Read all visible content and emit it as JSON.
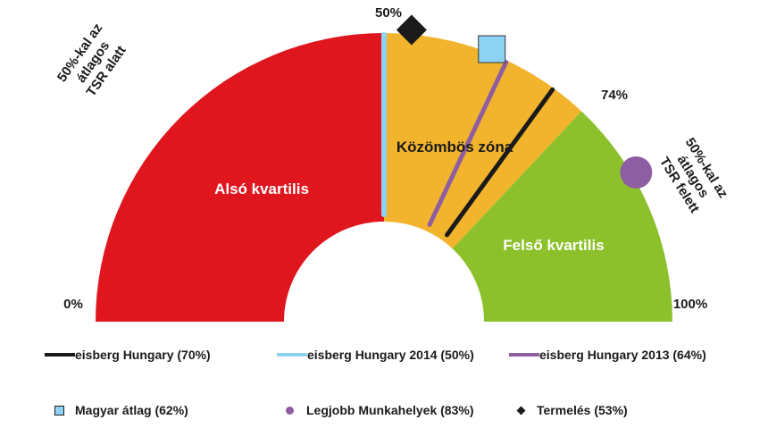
{
  "chart_data": {
    "type": "gauge",
    "scale_start_label": "0%",
    "scale_end_label": "100%",
    "zones": [
      {
        "name": "Alsó kvartilis",
        "from": 0,
        "to": 50,
        "color": "#e0161f"
      },
      {
        "name": "Közömbös zóna",
        "from": 50,
        "to": 74,
        "color": "#f2b42c"
      },
      {
        "name": "Felső kvartilis",
        "from": 74,
        "to": 100,
        "color": "#8dc12b"
      }
    ],
    "zone_boundary_labels": [
      "50%",
      "74%"
    ],
    "side_notes": {
      "left": [
        "50%-kal az",
        "átlagos",
        "TSR alatt"
      ],
      "right": [
        "50%-kal az",
        "átlagos",
        "TSR felett"
      ]
    },
    "needles": [
      {
        "name": "eisberg Hungary (70%)",
        "value": 70,
        "color": "#1a1a1a"
      },
      {
        "name": "eisberg Hungary 2014 (50%)",
        "value": 50,
        "color": "#8fd3f4"
      },
      {
        "name": "eisberg Hungary 2013 (64%)",
        "value": 64,
        "color": "#8e5ea2"
      }
    ],
    "markers": [
      {
        "name": "Magyar átlag (62%)",
        "value": 62,
        "shape": "square",
        "color": "#8fd3f4"
      },
      {
        "name": "Legjobb Munkahelyek (83%)",
        "value": 83,
        "shape": "circle",
        "color": "#8e5ea2"
      },
      {
        "name": "Termelés (53%)",
        "value": 53,
        "shape": "diamond",
        "color": "#1a1a1a"
      }
    ]
  }
}
